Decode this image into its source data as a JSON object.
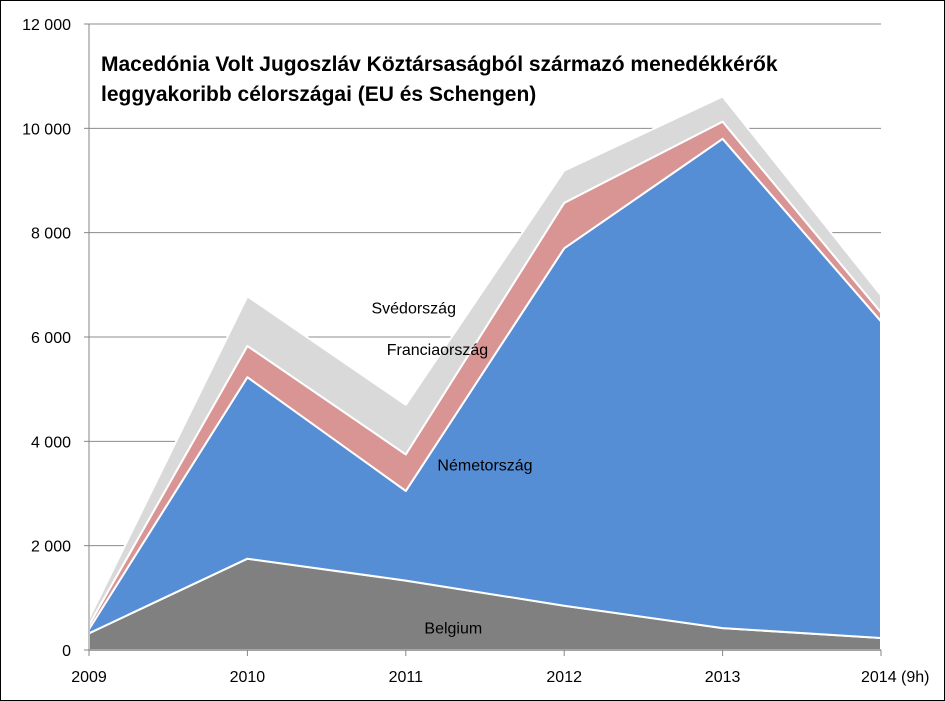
{
  "chart_data": {
    "type": "area",
    "stacked": true,
    "title_lines": [
      "Macedónia Volt Jugoszláv Köztársaságból származó menedékkérők",
      "leggyakoribb célországai (EU és Schengen)"
    ],
    "xlabel": "",
    "ylabel": "",
    "categories": [
      "2009",
      "2010",
      "2011",
      "2012",
      "2013",
      "2014 (9h)"
    ],
    "ylim": [
      0,
      12000
    ],
    "yticks": [
      0,
      2000,
      4000,
      6000,
      8000,
      10000,
      12000
    ],
    "ytick_labels": [
      "0",
      "2 000",
      "4 000",
      "6 000",
      "8 000",
      "10 000",
      "12 000"
    ],
    "grid": true,
    "legend": "none (series labelled inside areas)",
    "series": [
      {
        "name": "Belgium",
        "color": "#808080",
        "values": [
          320,
          1750,
          1330,
          850,
          420,
          230
        ]
      },
      {
        "name": "Németország",
        "color": "#558ED5",
        "values": [
          80,
          3480,
          1720,
          6850,
          9380,
          6070
        ]
      },
      {
        "name": "Franciaország",
        "color": "#D99594",
        "values": [
          80,
          600,
          700,
          870,
          330,
          170
        ]
      },
      {
        "name": "Svédország",
        "color": "#D9D9D9",
        "values": [
          120,
          950,
          950,
          620,
          480,
          330
        ]
      }
    ]
  }
}
